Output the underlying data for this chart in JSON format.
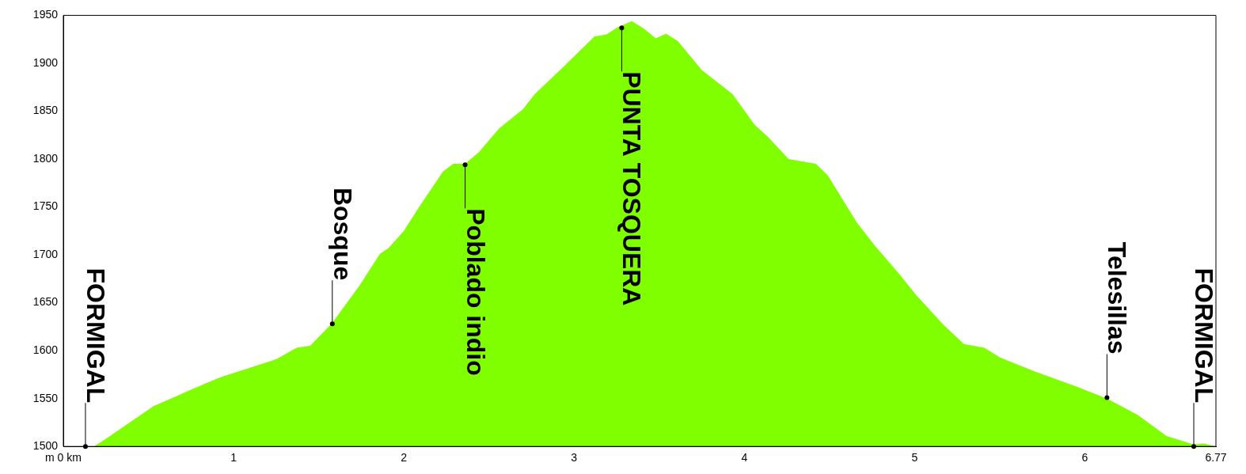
{
  "chart_data": {
    "type": "area",
    "x": [
      0,
      0.18,
      0.25,
      0.53,
      0.76,
      0.92,
      1.25,
      1.37,
      1.45,
      1.58,
      1.74,
      1.86,
      1.91,
      2.0,
      2.09,
      2.23,
      2.29,
      2.36,
      2.44,
      2.56,
      2.7,
      2.77,
      2.93,
      3.12,
      3.19,
      3.26,
      3.34,
      3.41,
      3.48,
      3.54,
      3.61,
      3.75,
      3.93,
      4.06,
      4.14,
      4.26,
      4.42,
      4.49,
      4.66,
      4.77,
      4.91,
      5.01,
      5.17,
      5.29,
      5.41,
      5.5,
      5.71,
      5.96,
      6.13,
      6.31,
      6.48,
      6.64,
      6.7,
      6.77
    ],
    "values": [
      1500,
      1500,
      1508,
      1542,
      1560,
      1572,
      1591,
      1603,
      1605,
      1629,
      1668,
      1701,
      1707,
      1725,
      1750,
      1787,
      1795,
      1795,
      1807,
      1832,
      1852,
      1868,
      1895,
      1928,
      1930,
      1938,
      1944,
      1936,
      1926,
      1931,
      1923,
      1893,
      1868,
      1836,
      1823,
      1800,
      1795,
      1783,
      1734,
      1709,
      1680,
      1658,
      1627,
      1607,
      1603,
      1593,
      1578,
      1562,
      1550,
      1533,
      1511,
      1502,
      1503,
      1500
    ],
    "color": "#80ff00",
    "xlim": [
      0,
      6.77
    ],
    "xticks": [
      {
        "value": 0,
        "label": "m 0 km"
      },
      1,
      2,
      3,
      4,
      5,
      6,
      6.77
    ],
    "ylim": [
      1500,
      1950
    ],
    "yticks": [
      1500,
      1550,
      1600,
      1650,
      1700,
      1750,
      1800,
      1850,
      1900,
      1950
    ],
    "grid": false,
    "legend": false,
    "marker": "none",
    "annotations": [
      {
        "text": "FORMIGAL",
        "x": 0.13,
        "y": 1500
      },
      {
        "text": "Bosque",
        "x": 1.58,
        "y": 1628
      },
      {
        "text": "Poblado indio",
        "x": 2.36,
        "y": 1794
      },
      {
        "text": "PUNTA TOSQUERA",
        "x": 3.28,
        "y": 1937
      },
      {
        "text": "Telesillas",
        "x": 6.13,
        "y": 1551
      },
      {
        "text": "FORMIGAL",
        "x": 6.64,
        "y": 1500
      }
    ]
  }
}
